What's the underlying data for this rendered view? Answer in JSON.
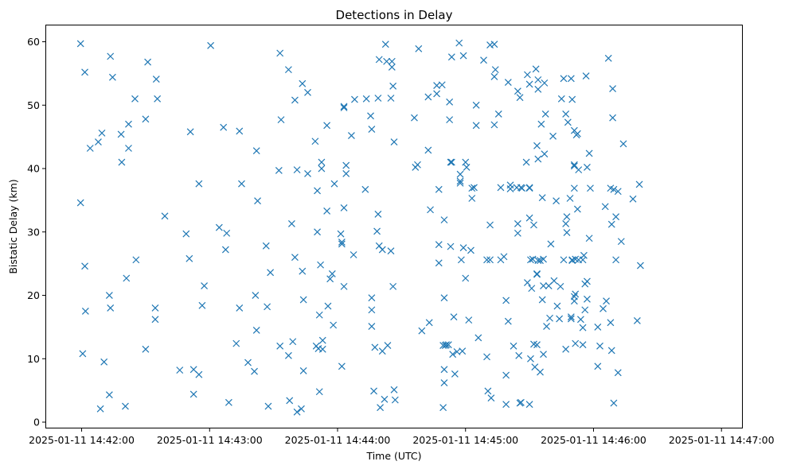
{
  "chart_data": {
    "type": "scatter",
    "title": "Detections in Delay",
    "xlabel": "Time (UTC)",
    "ylabel": "Bistatic Delay (km)",
    "marker": "x",
    "color": "#1f77b4",
    "grid": false,
    "x_unit": "seconds after 2025-01-11 14:42:00",
    "xlim": [
      -17.0,
      310.0
    ],
    "ylim": [
      -1.0,
      62.7
    ],
    "x_ticks": [
      {
        "value": 0,
        "label": "2025-01-11 14:42:00"
      },
      {
        "value": 60,
        "label": "2025-01-11 14:43:00"
      },
      {
        "value": 120,
        "label": "2025-01-11 14:44:00"
      },
      {
        "value": 180,
        "label": "2025-01-11 14:45:00"
      },
      {
        "value": 240,
        "label": "2025-01-11 14:46:00"
      },
      {
        "value": 300,
        "label": "2025-01-11 14:47:00"
      }
    ],
    "y_ticks": [
      {
        "value": 0,
        "label": "0"
      },
      {
        "value": 10,
        "label": "10"
      },
      {
        "value": 20,
        "label": "20"
      },
      {
        "value": 30,
        "label": "30"
      },
      {
        "value": 40,
        "label": "40"
      },
      {
        "value": 50,
        "label": "50"
      },
      {
        "value": 60,
        "label": "60"
      }
    ],
    "points": [
      [
        -0.5,
        59.7
      ],
      [
        -0.5,
        34.6
      ],
      [
        0.5,
        10.8
      ],
      [
        1.5,
        55.2
      ],
      [
        1.5,
        24.6
      ],
      [
        1.8,
        17.5
      ],
      [
        4,
        43.2
      ],
      [
        7.8,
        44.2
      ],
      [
        9.5,
        45.6
      ],
      [
        8.8,
        2.1
      ],
      [
        10.5,
        9.5
      ],
      [
        13.5,
        57.7
      ],
      [
        14.5,
        54.4
      ],
      [
        13,
        20
      ],
      [
        13.5,
        18
      ],
      [
        13,
        4.3
      ],
      [
        18.5,
        45.4
      ],
      [
        18.8,
        41
      ],
      [
        20.5,
        2.5
      ],
      [
        21,
        22.7
      ],
      [
        22,
        47
      ],
      [
        22,
        43.2
      ],
      [
        25,
        51
      ],
      [
        25.5,
        25.6
      ],
      [
        30,
        47.8
      ],
      [
        31,
        56.8
      ],
      [
        30,
        11.5
      ],
      [
        35,
        54.1
      ],
      [
        35.5,
        51
      ],
      [
        34.5,
        18
      ],
      [
        34.5,
        16.2
      ],
      [
        39,
        32.5
      ],
      [
        46,
        8.2
      ],
      [
        49,
        29.7
      ],
      [
        50.5,
        25.8
      ],
      [
        51,
        45.8
      ],
      [
        52.5,
        8.3
      ],
      [
        52.5,
        4.4
      ],
      [
        55,
        7.5
      ],
      [
        55,
        37.6
      ],
      [
        56.5,
        18.4
      ],
      [
        57.5,
        21.5
      ],
      [
        60.5,
        59.4
      ],
      [
        64.5,
        30.7
      ],
      [
        66.5,
        46.5
      ],
      [
        67.5,
        27.2
      ],
      [
        68,
        29.8
      ],
      [
        69,
        3.1
      ],
      [
        72.5,
        12.4
      ],
      [
        74,
        45.9
      ],
      [
        74,
        18
      ],
      [
        75,
        37.6
      ],
      [
        78,
        9.4
      ],
      [
        81,
        8
      ],
      [
        81.5,
        20
      ],
      [
        82,
        14.5
      ],
      [
        82,
        42.8
      ],
      [
        82.5,
        34.9
      ],
      [
        86.5,
        27.8
      ],
      [
        87,
        18.2
      ],
      [
        87.5,
        2.5
      ],
      [
        88.5,
        23.6
      ],
      [
        93,
        58.2
      ],
      [
        93.5,
        47.7
      ],
      [
        92.5,
        39.7
      ],
      [
        93,
        12
      ],
      [
        97,
        55.6
      ],
      [
        97,
        10.5
      ],
      [
        97.5,
        3.4
      ],
      [
        98.5,
        31.3
      ],
      [
        99,
        12.7
      ],
      [
        100,
        50.8
      ],
      [
        100,
        26
      ],
      [
        101,
        39.8
      ],
      [
        101,
        1.6
      ],
      [
        103,
        2.1
      ],
      [
        103.5,
        53.4
      ],
      [
        103.5,
        23.8
      ],
      [
        104,
        19.3
      ],
      [
        104,
        8.1
      ],
      [
        106,
        52
      ],
      [
        106,
        39.2
      ],
      [
        109.5,
        44.3
      ],
      [
        110.5,
        36.5
      ],
      [
        110.5,
        30
      ],
      [
        110,
        12
      ],
      [
        111,
        11.6
      ],
      [
        111.5,
        4.8
      ],
      [
        111.5,
        16.9
      ],
      [
        112,
        24.8
      ],
      [
        112.5,
        41
      ],
      [
        112.5,
        40
      ],
      [
        113,
        12.9
      ],
      [
        113,
        11.5
      ],
      [
        115,
        46.8
      ],
      [
        115,
        33.3
      ],
      [
        115.5,
        18.3
      ],
      [
        116.5,
        22.6
      ],
      [
        117.5,
        23.4
      ],
      [
        118,
        15.3
      ],
      [
        118.5,
        37.6
      ],
      [
        121.5,
        29.7
      ],
      [
        122,
        28.1
      ],
      [
        122,
        28.4
      ],
      [
        122,
        8.8
      ],
      [
        123,
        49.6
      ],
      [
        123,
        49.8
      ],
      [
        123,
        33.8
      ],
      [
        123,
        21.4
      ],
      [
        124,
        40.5
      ],
      [
        124,
        39.2
      ],
      [
        126.5,
        45.2
      ],
      [
        127.5,
        26.4
      ],
      [
        128,
        50.9
      ],
      [
        133,
        36.7
      ],
      [
        133.5,
        51
      ],
      [
        135.5,
        48.3
      ],
      [
        136,
        46.2
      ],
      [
        136,
        19.6
      ],
      [
        136,
        17.7
      ],
      [
        136,
        15.1
      ],
      [
        137,
        4.9
      ],
      [
        137.5,
        11.8
      ],
      [
        138.5,
        30.1
      ],
      [
        139,
        51.1
      ],
      [
        139,
        32.8
      ],
      [
        139.5,
        57.2
      ],
      [
        139.5,
        27.8
      ],
      [
        140,
        2.3
      ],
      [
        141,
        11.2
      ],
      [
        141,
        27.2
      ],
      [
        142,
        3.6
      ],
      [
        142.5,
        59.6
      ],
      [
        143,
        56.9
      ],
      [
        143.5,
        12.1
      ],
      [
        145,
        51.1
      ],
      [
        145,
        27
      ],
      [
        145.5,
        56.9
      ],
      [
        145.5,
        56
      ],
      [
        146,
        53
      ],
      [
        146,
        21.4
      ],
      [
        146.5,
        44.2
      ],
      [
        146.5,
        5.1
      ],
      [
        147,
        3.5
      ],
      [
        156,
        48
      ],
      [
        156.5,
        40.2
      ],
      [
        157.5,
        40.6
      ],
      [
        158,
        58.9
      ],
      [
        159.5,
        14.4
      ],
      [
        162.5,
        51.3
      ],
      [
        162.5,
        42.9
      ],
      [
        163.5,
        33.5
      ],
      [
        163,
        15.7
      ],
      [
        166.5,
        53.1
      ],
      [
        166.5,
        51.8
      ],
      [
        167.5,
        36.7
      ],
      [
        167.5,
        28
      ],
      [
        167.5,
        25.1
      ],
      [
        169,
        53.2
      ],
      [
        170,
        31.9
      ],
      [
        170,
        19.6
      ],
      [
        169.5,
        12.1
      ],
      [
        170.5,
        12.1
      ],
      [
        171,
        12.2
      ],
      [
        170,
        8.3
      ],
      [
        170,
        6.2
      ],
      [
        169.5,
        2.3
      ],
      [
        172,
        12.2
      ],
      [
        172.5,
        50.5
      ],
      [
        172.5,
        47.7
      ],
      [
        173,
        41
      ],
      [
        173,
        27.7
      ],
      [
        173.5,
        57.6
      ],
      [
        173.5,
        41
      ],
      [
        174,
        10.7
      ],
      [
        174.5,
        16.6
      ],
      [
        175,
        7.6
      ],
      [
        176,
        11.1
      ],
      [
        177,
        59.8
      ],
      [
        177.5,
        39.1
      ],
      [
        177.5,
        38
      ],
      [
        177.5,
        37.7
      ],
      [
        178,
        25.6
      ],
      [
        178.5,
        11.2
      ],
      [
        179,
        57.8
      ],
      [
        179,
        27.5
      ],
      [
        180,
        41
      ],
      [
        180.5,
        40.2
      ],
      [
        180,
        22.7
      ],
      [
        181.5,
        16.1
      ],
      [
        182.5,
        27.1
      ],
      [
        183,
        36.9
      ],
      [
        183,
        35.3
      ],
      [
        184,
        37
      ],
      [
        185,
        50
      ],
      [
        185,
        46.8
      ],
      [
        186,
        13.3
      ],
      [
        188.5,
        57.1
      ],
      [
        190,
        25.6
      ],
      [
        190,
        10.3
      ],
      [
        190.5,
        4.9
      ],
      [
        191.5,
        59.5
      ],
      [
        191.5,
        31.1
      ],
      [
        191.5,
        25.6
      ],
      [
        192,
        3.8
      ],
      [
        193.5,
        59.6
      ],
      [
        193.5,
        54.5
      ],
      [
        193.5,
        46.9
      ],
      [
        194,
        55.6
      ],
      [
        195.5,
        48.6
      ],
      [
        196.5,
        25.6
      ],
      [
        196.5,
        37
      ],
      [
        198,
        26.1
      ],
      [
        199,
        19.2
      ],
      [
        199,
        7.4
      ],
      [
        199,
        2.8
      ],
      [
        200,
        15.9
      ],
      [
        200,
        53.6
      ],
      [
        201,
        37.4
      ],
      [
        201,
        36.8
      ],
      [
        202.5,
        12
      ],
      [
        204,
        37
      ],
      [
        204.5,
        52.2
      ],
      [
        204.5,
        31.3
      ],
      [
        204.5,
        29.8
      ],
      [
        205.5,
        3
      ],
      [
        205,
        10.5
      ],
      [
        205.5,
        51.2
      ],
      [
        206,
        37
      ],
      [
        206.5,
        36.9
      ],
      [
        206,
        3.1
      ],
      [
        208.5,
        41
      ],
      [
        209,
        22
      ],
      [
        209,
        54.8
      ],
      [
        210,
        53.3
      ],
      [
        210,
        32.2
      ],
      [
        210,
        37
      ],
      [
        210,
        36.9
      ],
      [
        210.5,
        25.6
      ],
      [
        210.5,
        10
      ],
      [
        210,
        2.8
      ],
      [
        211,
        21.1
      ],
      [
        211.5,
        25.7
      ],
      [
        212,
        31.1
      ],
      [
        212,
        12.3
      ],
      [
        212.5,
        8.7
      ],
      [
        213,
        55.7
      ],
      [
        213.5,
        43.6
      ],
      [
        213.5,
        23.4
      ],
      [
        213.5,
        23.3
      ],
      [
        213.5,
        12.2
      ],
      [
        214,
        52.5
      ],
      [
        214,
        41.5
      ],
      [
        214,
        25.5
      ],
      [
        214,
        54
      ],
      [
        215.5,
        47
      ],
      [
        215,
        25.5
      ],
      [
        215,
        7.9
      ],
      [
        216,
        35.4
      ],
      [
        216,
        19.3
      ],
      [
        216.5,
        25.7
      ],
      [
        216.5,
        10.7
      ],
      [
        216.5,
        21.5
      ],
      [
        217,
        53.5
      ],
      [
        217,
        42.3
      ],
      [
        217.5,
        48.6
      ],
      [
        218,
        15.1
      ],
      [
        219,
        21.5
      ],
      [
        219.5,
        16.4
      ],
      [
        220,
        28.1
      ],
      [
        221,
        45.1
      ],
      [
        221.5,
        22.3
      ],
      [
        222.5,
        34.9
      ],
      [
        223,
        18.3
      ],
      [
        224,
        16.3
      ],
      [
        224.5,
        21.4
      ],
      [
        225,
        51
      ],
      [
        226,
        54.2
      ],
      [
        226,
        25.6
      ],
      [
        227,
        48.6
      ],
      [
        227,
        11.5
      ],
      [
        227,
        31.3
      ],
      [
        227.5,
        29.9
      ],
      [
        227.5,
        32.4
      ],
      [
        228,
        47.3
      ],
      [
        229,
        35.3
      ],
      [
        229.5,
        16.3
      ],
      [
        229.5,
        16.6
      ],
      [
        229.5,
        54.2
      ],
      [
        230,
        50.9
      ],
      [
        230,
        25.6
      ],
      [
        230,
        25.5
      ],
      [
        231,
        46
      ],
      [
        231,
        40.6
      ],
      [
        231,
        36.9
      ],
      [
        231,
        40.4
      ],
      [
        231,
        19.1
      ],
      [
        231,
        19.8
      ],
      [
        231.5,
        20.2
      ],
      [
        231.5,
        12.4
      ],
      [
        231.5,
        25.7
      ],
      [
        232,
        45.3
      ],
      [
        232.5,
        45.5
      ],
      [
        232.5,
        33.6
      ],
      [
        233,
        25.6
      ],
      [
        233,
        39.8
      ],
      [
        234,
        16.2
      ],
      [
        235,
        25.6
      ],
      [
        235,
        14.9
      ],
      [
        235,
        12.2
      ],
      [
        235.5,
        26.3
      ],
      [
        236,
        21.8
      ],
      [
        236,
        17.7
      ],
      [
        236.5,
        54.6
      ],
      [
        237,
        40.2
      ],
      [
        237,
        22.2
      ],
      [
        237,
        19.4
      ],
      [
        238,
        42.4
      ],
      [
        238,
        29
      ],
      [
        238.5,
        36.9
      ],
      [
        242,
        15
      ],
      [
        242,
        8.8
      ],
      [
        243,
        12
      ],
      [
        244.5,
        17.9
      ],
      [
        245.5,
        34
      ],
      [
        246,
        19.1
      ],
      [
        247,
        57.4
      ],
      [
        248,
        36.9
      ],
      [
        248,
        15.7
      ],
      [
        248.5,
        31.2
      ],
      [
        248.5,
        11.3
      ],
      [
        249,
        52.6
      ],
      [
        249,
        48
      ],
      [
        249.5,
        3
      ],
      [
        249.5,
        36.7
      ],
      [
        250.5,
        32.4
      ],
      [
        250.5,
        25.6
      ],
      [
        251.5,
        36.4
      ],
      [
        251.5,
        7.8
      ],
      [
        253,
        28.5
      ],
      [
        254,
        43.9
      ],
      [
        258.5,
        35.2
      ],
      [
        260.5,
        16
      ],
      [
        261.5,
        37.5
      ],
      [
        262,
        24.7
      ]
    ]
  }
}
